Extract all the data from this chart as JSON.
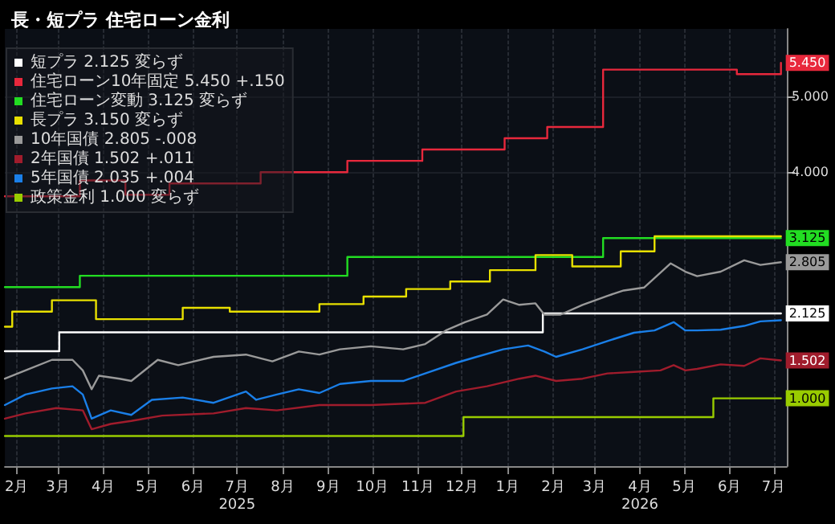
{
  "chart_data": {
    "type": "line",
    "title": "長・短プラ 住宅ローン金利",
    "xlim": [
      "2025-02-07",
      "2026-07-24"
    ],
    "xticks": [
      {
        "value": "2025-02-15",
        "label": "2月"
      },
      {
        "value": "2025-03-15",
        "label": "3月"
      },
      {
        "value": "2025-04-15",
        "label": "4月"
      },
      {
        "value": "2025-05-15",
        "label": "5月"
      },
      {
        "value": "2025-06-15",
        "label": "6月"
      },
      {
        "value": "2025-07-15",
        "label": "7月\n2025"
      },
      {
        "value": "2025-08-15",
        "label": "8月"
      },
      {
        "value": "2025-09-15",
        "label": "9月"
      },
      {
        "value": "2025-10-15",
        "label": "10月"
      },
      {
        "value": "2025-11-15",
        "label": "11月"
      },
      {
        "value": "2025-12-15",
        "label": "12月"
      },
      {
        "value": "2026-01-15",
        "label": "1月"
      },
      {
        "value": "2026-02-15",
        "label": "2月"
      },
      {
        "value": "2026-03-15",
        "label": "3月"
      },
      {
        "value": "2026-04-15",
        "label": "4月\n2026"
      },
      {
        "value": "2026-05-15",
        "label": "5月"
      },
      {
        "value": "2026-06-15",
        "label": "6月"
      },
      {
        "value": "2026-07-15",
        "label": "7月"
      }
    ],
    "ylim": [
      0.1,
      5.9
    ],
    "yticks": [
      {
        "value": 4,
        "label": "4.000"
      },
      {
        "value": 5,
        "label": "5.000"
      }
    ],
    "grid": true,
    "legend": "top left",
    "marker": "none",
    "series": [
      {
        "name": "短プラ 2.125 変らず",
        "type": "step",
        "color": "#ffffff",
        "x": [
          "2025-02-07",
          "2025-03-16",
          "2026-02-08",
          "2026-07-20"
        ],
        "values": [
          1.625,
          1.875,
          2.125,
          2.125
        ],
        "value_labels": [
          null,
          null,
          null,
          "2.125"
        ]
      },
      {
        "name": "住宅ローン10年固定 5.450 +.150",
        "type": "step",
        "color": "#e8283c",
        "x": [
          "2025-02-07",
          "2025-03-30",
          "2025-04-30",
          "2025-05-30",
          "2025-07-31",
          "2025-09-28",
          "2025-11-18",
          "2026-01-13",
          "2026-02-11",
          "2026-03-21",
          "2026-06-20",
          "2026-07-20"
        ],
        "values": [
          3.68,
          3.89,
          3.7,
          3.85,
          4.0,
          4.15,
          4.3,
          4.45,
          4.6,
          5.36,
          5.3,
          5.45
        ],
        "value_labels": [
          null,
          null,
          null,
          null,
          null,
          null,
          null,
          null,
          null,
          null,
          null,
          "5.450"
        ]
      },
      {
        "name": "住宅ローン変動 3.125 変らず",
        "type": "step",
        "color": "#22dd22",
        "x": [
          "2025-02-07",
          "2025-03-30",
          "2025-09-28",
          "2026-03-21",
          "2026-07-20"
        ],
        "values": [
          2.475,
          2.625,
          2.875,
          3.125,
          3.125
        ],
        "value_labels": [
          null,
          null,
          null,
          null,
          "3.125"
        ]
      },
      {
        "name": "長プラ 3.150 変らず",
        "type": "step",
        "color": "#e8e000",
        "x": [
          "2025-02-07",
          "2025-02-12",
          "2025-03-11",
          "2025-04-10",
          "2025-06-08",
          "2025-07-10",
          "2025-09-09",
          "2025-10-09",
          "2025-11-07",
          "2025-12-07",
          "2026-01-03",
          "2026-02-03",
          "2026-02-28",
          "2026-04-02",
          "2026-04-25",
          "2026-07-20"
        ],
        "values": [
          1.95,
          2.15,
          2.3,
          2.05,
          2.2,
          2.15,
          2.25,
          2.35,
          2.45,
          2.55,
          2.7,
          2.9,
          2.75,
          2.95,
          3.15,
          3.15
        ]
      },
      {
        "name": "10年国債 2.805 -.008",
        "color": "#9a9a9a",
        "x": [
          "2025-02-07",
          "2025-02-21",
          "2025-03-11",
          "2025-03-25",
          "2025-04-01",
          "2025-04-07",
          "2025-04-12",
          "2025-04-26",
          "2025-05-04",
          "2025-05-22",
          "2025-06-05",
          "2025-06-29",
          "2025-07-21",
          "2025-08-08",
          "2025-08-26",
          "2025-09-09",
          "2025-09-23",
          "2025-10-14",
          "2025-11-05",
          "2025-11-20",
          "2025-12-04",
          "2025-12-17",
          "2026-01-01",
          "2026-01-12",
          "2026-01-23",
          "2026-02-03",
          "2026-02-09",
          "2026-02-20",
          "2026-03-07",
          "2026-03-24",
          "2026-04-04",
          "2026-04-18",
          "2026-05-06",
          "2026-05-16",
          "2026-05-24",
          "2026-06-09",
          "2026-06-25",
          "2026-07-06",
          "2026-07-20"
        ],
        "values": [
          1.26,
          1.37,
          1.51,
          1.51,
          1.37,
          1.12,
          1.3,
          1.26,
          1.23,
          1.51,
          1.44,
          1.55,
          1.58,
          1.49,
          1.62,
          1.58,
          1.65,
          1.69,
          1.65,
          1.72,
          1.9,
          2.01,
          2.11,
          2.31,
          2.24,
          2.26,
          2.11,
          2.11,
          2.24,
          2.36,
          2.43,
          2.47,
          2.79,
          2.68,
          2.62,
          2.68,
          2.83,
          2.77,
          2.805
        ],
        "value_labels": [
          null,
          null,
          null,
          null,
          null,
          null,
          null,
          null,
          null,
          null,
          null,
          null,
          null,
          null,
          null,
          null,
          null,
          null,
          null,
          null,
          null,
          null,
          null,
          null,
          null,
          null,
          null,
          null,
          null,
          null,
          null,
          null,
          null,
          null,
          null,
          null,
          null,
          null,
          "2.805"
        ]
      },
      {
        "name": "2年国債 1.502 +.011",
        "color": "#a01c2c",
        "x": [
          "2025-02-07",
          "2025-02-21",
          "2025-03-14",
          "2025-04-01",
          "2025-04-07",
          "2025-04-20",
          "2025-05-04",
          "2025-05-25",
          "2025-06-29",
          "2025-07-21",
          "2025-08-11",
          "2025-09-09",
          "2025-10-14",
          "2025-11-20",
          "2025-12-11",
          "2026-01-01",
          "2026-01-23",
          "2026-02-03",
          "2026-02-17",
          "2026-03-07",
          "2026-03-24",
          "2026-04-11",
          "2026-04-29",
          "2026-05-08",
          "2026-05-16",
          "2026-05-24",
          "2026-06-09",
          "2026-06-25",
          "2026-07-06",
          "2026-07-20"
        ],
        "values": [
          0.73,
          0.8,
          0.87,
          0.84,
          0.59,
          0.66,
          0.7,
          0.77,
          0.8,
          0.87,
          0.84,
          0.91,
          0.91,
          0.94,
          1.09,
          1.16,
          1.26,
          1.3,
          1.23,
          1.26,
          1.33,
          1.35,
          1.37,
          1.44,
          1.37,
          1.39,
          1.45,
          1.43,
          1.53,
          1.502
        ],
        "value_labels": [
          null,
          null,
          null,
          null,
          null,
          null,
          null,
          null,
          null,
          null,
          null,
          null,
          null,
          null,
          null,
          null,
          null,
          null,
          null,
          null,
          null,
          null,
          null,
          null,
          null,
          null,
          null,
          null,
          null,
          "1.502"
        ]
      },
      {
        "name": "5年国債 2.035 +.004",
        "color": "#1a7fe8",
        "x": [
          "2025-02-07",
          "2025-02-21",
          "2025-03-11",
          "2025-03-25",
          "2025-04-01",
          "2025-04-07",
          "2025-04-20",
          "2025-05-04",
          "2025-05-18",
          "2025-06-08",
          "2025-06-29",
          "2025-07-21",
          "2025-07-28",
          "2025-08-11",
          "2025-08-26",
          "2025-09-09",
          "2025-09-23",
          "2025-10-14",
          "2025-11-05",
          "2025-11-20",
          "2025-12-11",
          "2025-12-25",
          "2026-01-12",
          "2026-01-29",
          "2026-02-09",
          "2026-02-17",
          "2026-03-07",
          "2026-03-24",
          "2026-04-11",
          "2026-04-25",
          "2026-05-08",
          "2026-05-16",
          "2026-05-24",
          "2026-06-09",
          "2026-06-25",
          "2026-07-06",
          "2026-07-20"
        ],
        "values": [
          0.91,
          1.05,
          1.13,
          1.16,
          1.05,
          0.73,
          0.84,
          0.78,
          0.98,
          1.01,
          0.94,
          1.09,
          0.98,
          1.05,
          1.12,
          1.07,
          1.19,
          1.23,
          1.23,
          1.33,
          1.47,
          1.55,
          1.65,
          1.7,
          1.62,
          1.55,
          1.65,
          1.76,
          1.87,
          1.9,
          2.01,
          1.9,
          1.9,
          1.91,
          1.96,
          2.02,
          2.035
        ]
      },
      {
        "name": "政策金利 1.000 変らず",
        "type": "step",
        "color": "#99cc00",
        "x": [
          "2025-02-07",
          "2025-12-16",
          "2026-06-04",
          "2026-07-20"
        ],
        "values": [
          0.5,
          0.75,
          1.0,
          1.0
        ],
        "value_labels": [
          null,
          null,
          null,
          "1.000"
        ]
      }
    ]
  }
}
